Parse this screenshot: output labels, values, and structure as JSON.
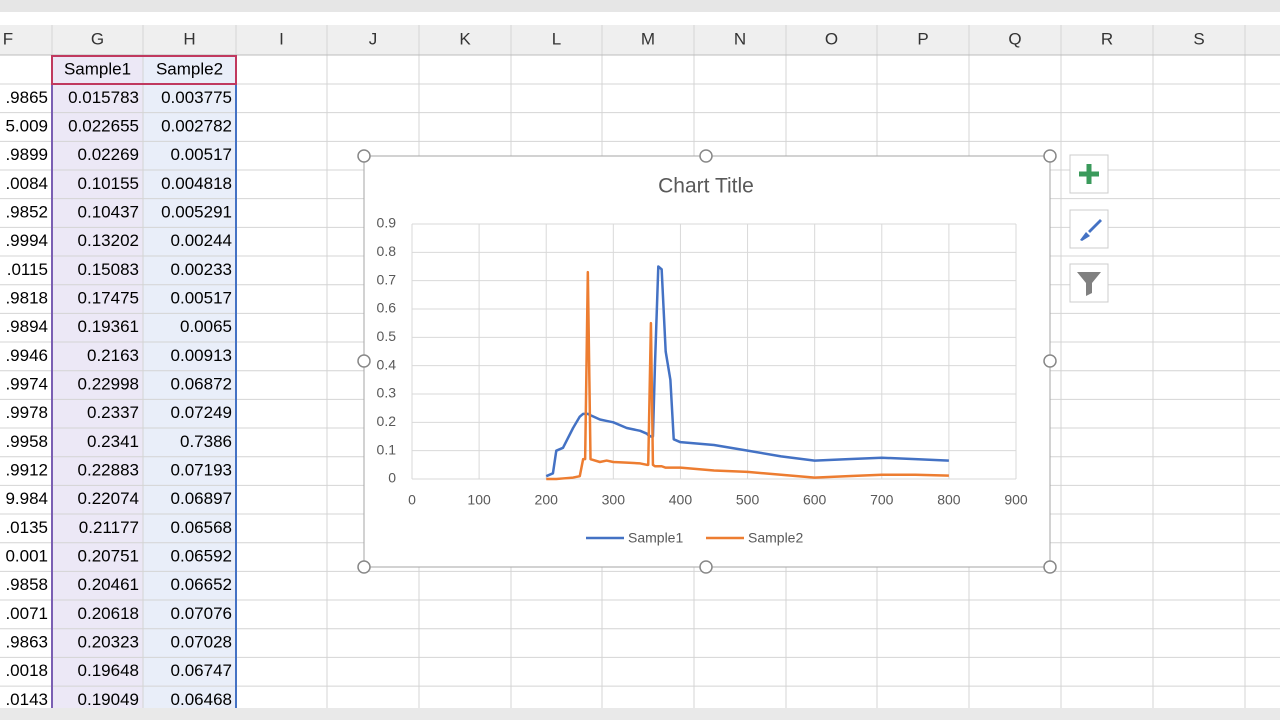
{
  "sheet": {
    "columns": [
      "F",
      "G",
      "H",
      "I",
      "J",
      "K",
      "L",
      "M",
      "N",
      "O",
      "P",
      "Q",
      "R",
      "S"
    ],
    "header_row": [
      "Sample1",
      "Sample2"
    ],
    "rows": [
      [
        ".9865",
        "0.015783",
        "0.003775"
      ],
      [
        "5.009",
        "0.022655",
        "0.002782"
      ],
      [
        ".9899",
        "0.02269",
        "0.00517"
      ],
      [
        ".0084",
        "0.10155",
        "0.004818"
      ],
      [
        ".9852",
        "0.10437",
        "0.005291"
      ],
      [
        ".9994",
        "0.13202",
        "0.00244"
      ],
      [
        ".0115",
        "0.15083",
        "0.00233"
      ],
      [
        ".9818",
        "0.17475",
        "0.00517"
      ],
      [
        ".9894",
        "0.19361",
        "0.0065"
      ],
      [
        ".9946",
        "0.2163",
        "0.00913"
      ],
      [
        ".9974",
        "0.22998",
        "0.06872"
      ],
      [
        ".9978",
        "0.2337",
        "0.07249"
      ],
      [
        ".9958",
        "0.2341",
        "0.7386"
      ],
      [
        ".9912",
        "0.22883",
        "0.07193"
      ],
      [
        "9.984",
        "0.22074",
        "0.06897"
      ],
      [
        ".0135",
        "0.21177",
        "0.06568"
      ],
      [
        "0.001",
        "0.20751",
        "0.06592"
      ],
      [
        ".9858",
        "0.20461",
        "0.06652"
      ],
      [
        ".0071",
        "0.20618",
        "0.07076"
      ],
      [
        ".9863",
        "0.20323",
        "0.07028"
      ],
      [
        ".0018",
        "0.19648",
        "0.06747"
      ],
      [
        ".0143",
        "0.19049",
        "0.06468"
      ]
    ]
  },
  "chart_data": {
    "type": "line",
    "title": "Chart Title",
    "x": [
      200,
      210,
      215,
      225,
      240,
      250,
      255,
      258,
      262,
      266,
      280,
      290,
      300,
      320,
      340,
      350,
      352,
      356,
      359,
      362,
      367,
      372,
      378,
      385,
      390,
      400,
      450,
      500,
      550,
      600,
      650,
      700,
      750,
      800
    ],
    "series": [
      {
        "name": "Sample1",
        "color": "#4472c4",
        "values": [
          0.01,
          0.02,
          0.1,
          0.11,
          0.18,
          0.22,
          0.23,
          0.23,
          0.23,
          0.225,
          0.21,
          0.205,
          0.2,
          0.18,
          0.17,
          0.16,
          0.155,
          0.15,
          0.15,
          0.4,
          0.75,
          0.74,
          0.45,
          0.35,
          0.14,
          0.13,
          0.12,
          0.1,
          0.08,
          0.065,
          0.07,
          0.075,
          0.07,
          0.065
        ]
      },
      {
        "name": "Sample2",
        "color": "#ed7d31",
        "values": [
          0,
          0,
          0,
          0.002,
          0.005,
          0.01,
          0.07,
          0.07,
          0.73,
          0.07,
          0.06,
          0.065,
          0.06,
          0.058,
          0.055,
          0.05,
          0.05,
          0.55,
          0.05,
          0.045,
          0.045,
          0.045,
          0.04,
          0.04,
          0.04,
          0.04,
          0.03,
          0.025,
          0.015,
          0.005,
          0.01,
          0.015,
          0.015,
          0.012
        ]
      }
    ],
    "xlim": [
      0,
      900
    ],
    "xticks": [
      0,
      100,
      200,
      300,
      400,
      500,
      600,
      700,
      800,
      900
    ],
    "ylim": [
      0,
      0.9
    ],
    "yticks": [
      0,
      0.1,
      0.2,
      0.3,
      0.4,
      0.5,
      0.6,
      0.7,
      0.8,
      0.9
    ],
    "grid": true
  }
}
